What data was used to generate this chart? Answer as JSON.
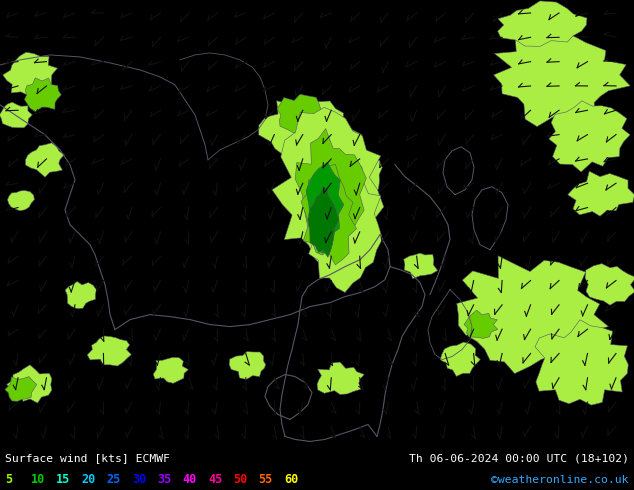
{
  "title_left": "Surface wind [kts] ECMWF",
  "title_right": "Th 06-06-2024 00:00 UTC (18+102)",
  "credit": "©weatheronline.co.uk",
  "legend_values": [
    "5",
    "10",
    "15",
    "20",
    "25",
    "30",
    "35",
    "40",
    "45",
    "50",
    "55",
    "60"
  ],
  "legend_colors": [
    "#99ff00",
    "#00cc00",
    "#00ffcc",
    "#00ccff",
    "#0066ff",
    "#0000ff",
    "#9900ff",
    "#ff00ff",
    "#ff0099",
    "#ff0000",
    "#ff6600",
    "#ffff00"
  ],
  "fig_width": 6.34,
  "fig_height": 4.9,
  "dpi": 100,
  "map_bg": "#e8d800",
  "light_green": "#aaee44",
  "medium_green": "#66cc00",
  "dark_green": "#009900",
  "darkest_green": "#007700",
  "coast_color": "#555566",
  "barb_color": "#111111",
  "bottom_bg": "#000000",
  "text_color": "#ffffff",
  "credit_color": "#33aaff"
}
